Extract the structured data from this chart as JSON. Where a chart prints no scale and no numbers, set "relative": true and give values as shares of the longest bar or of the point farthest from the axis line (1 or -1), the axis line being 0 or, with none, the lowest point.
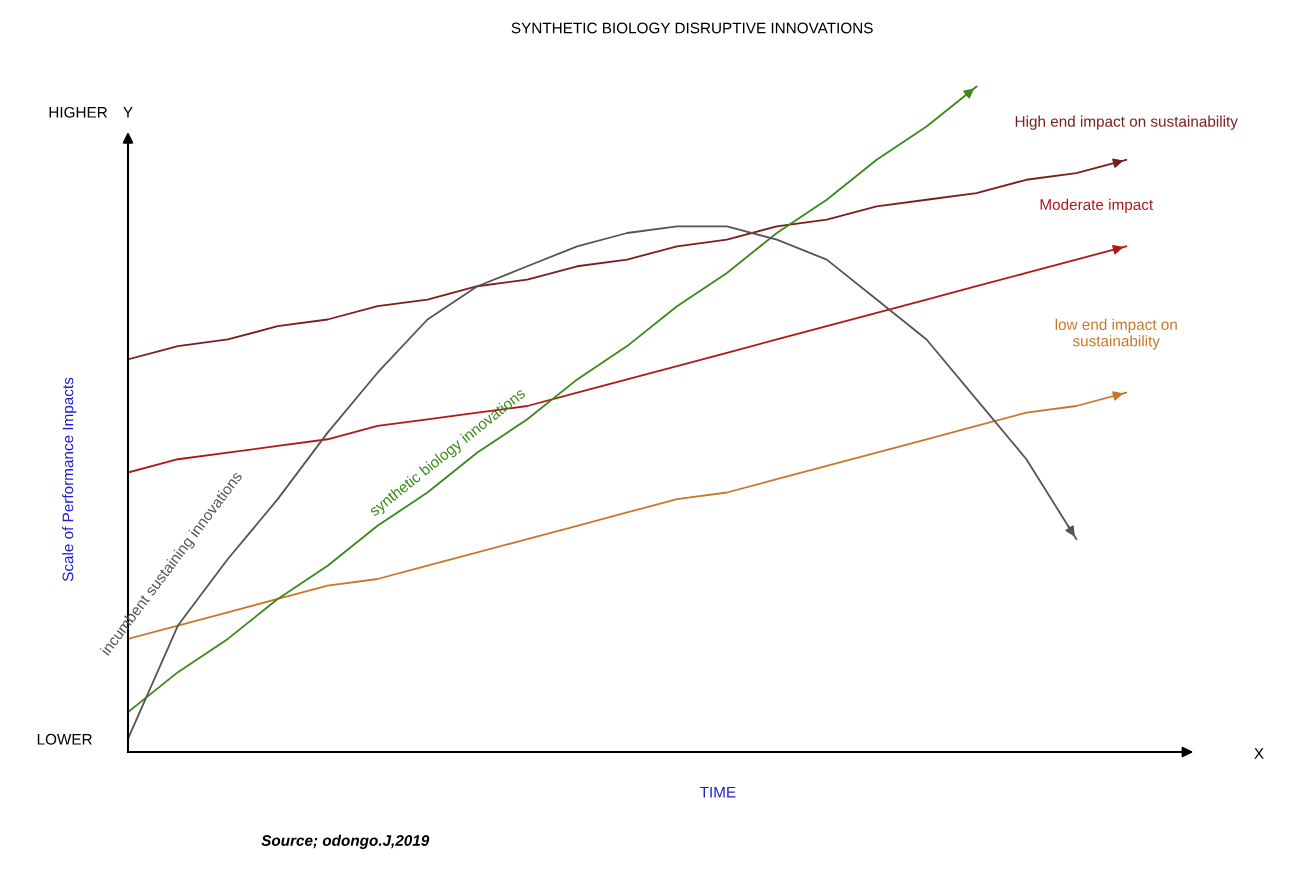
{
  "chart_data": {
    "type": "line",
    "relative": true,
    "title": "SYNTHETIC BIOLOGY DISRUPTIVE INNOVATIONS",
    "xlabel": "TIME",
    "ylabel": "Scale of Performance Impacts",
    "categories": [
      null,
      null,
      null,
      null,
      null,
      null,
      null,
      null,
      null,
      null,
      null,
      null,
      null,
      null,
      null,
      null,
      null,
      null,
      null,
      null,
      null
    ],
    "series": [
      {
        "name": "High end impact on sustainability",
        "color": "#7a1f1f",
        "values": [
          0.59,
          0.61,
          0.62,
          0.64,
          0.65,
          0.67,
          0.68,
          0.7,
          0.71,
          0.73,
          0.74,
          0.76,
          0.77,
          0.79,
          0.8,
          0.82,
          0.83,
          0.84,
          0.86,
          0.87,
          0.89
        ]
      },
      {
        "name": "Moderate impact",
        "color": "#b01818",
        "values": [
          0.42,
          0.44,
          0.45,
          0.46,
          0.47,
          0.49,
          0.5,
          0.51,
          0.52,
          0.54,
          0.56,
          0.58,
          0.6,
          0.62,
          0.64,
          0.66,
          0.68,
          0.7,
          0.72,
          0.74,
          0.76
        ]
      },
      {
        "name": "low end impact on\nsustainability",
        "color": "#c8782a",
        "values": [
          0.17,
          0.19,
          0.21,
          0.23,
          0.25,
          0.26,
          0.28,
          0.3,
          0.32,
          0.34,
          0.36,
          0.38,
          0.39,
          0.41,
          0.43,
          0.45,
          0.47,
          0.49,
          0.51,
          0.52,
          0.54
        ]
      },
      {
        "name": "synthetic biology innovations",
        "color": "#3a8a1a",
        "values": [
          0.06,
          0.12,
          0.17,
          0.23,
          0.28,
          0.34,
          0.39,
          0.45,
          0.5,
          0.56,
          0.61,
          0.67,
          0.72,
          0.78,
          0.83,
          0.89,
          0.94,
          1.0,
          null,
          null,
          null
        ]
      },
      {
        "name": "incumbent sustaining innovations",
        "color": "#555555",
        "values": [
          0.02,
          0.19,
          0.29,
          0.38,
          0.48,
          0.57,
          0.65,
          0.7,
          0.73,
          0.76,
          0.78,
          0.79,
          0.79,
          0.77,
          0.74,
          0.68,
          0.62,
          0.53,
          0.44,
          0.32,
          null
        ]
      }
    ],
    "annotations": [
      "HIGHER",
      "LOWER",
      "Y",
      "X",
      "Source; odongo.J,2019"
    ],
    "legend": false,
    "marker": "none",
    "line_style": "solid"
  }
}
